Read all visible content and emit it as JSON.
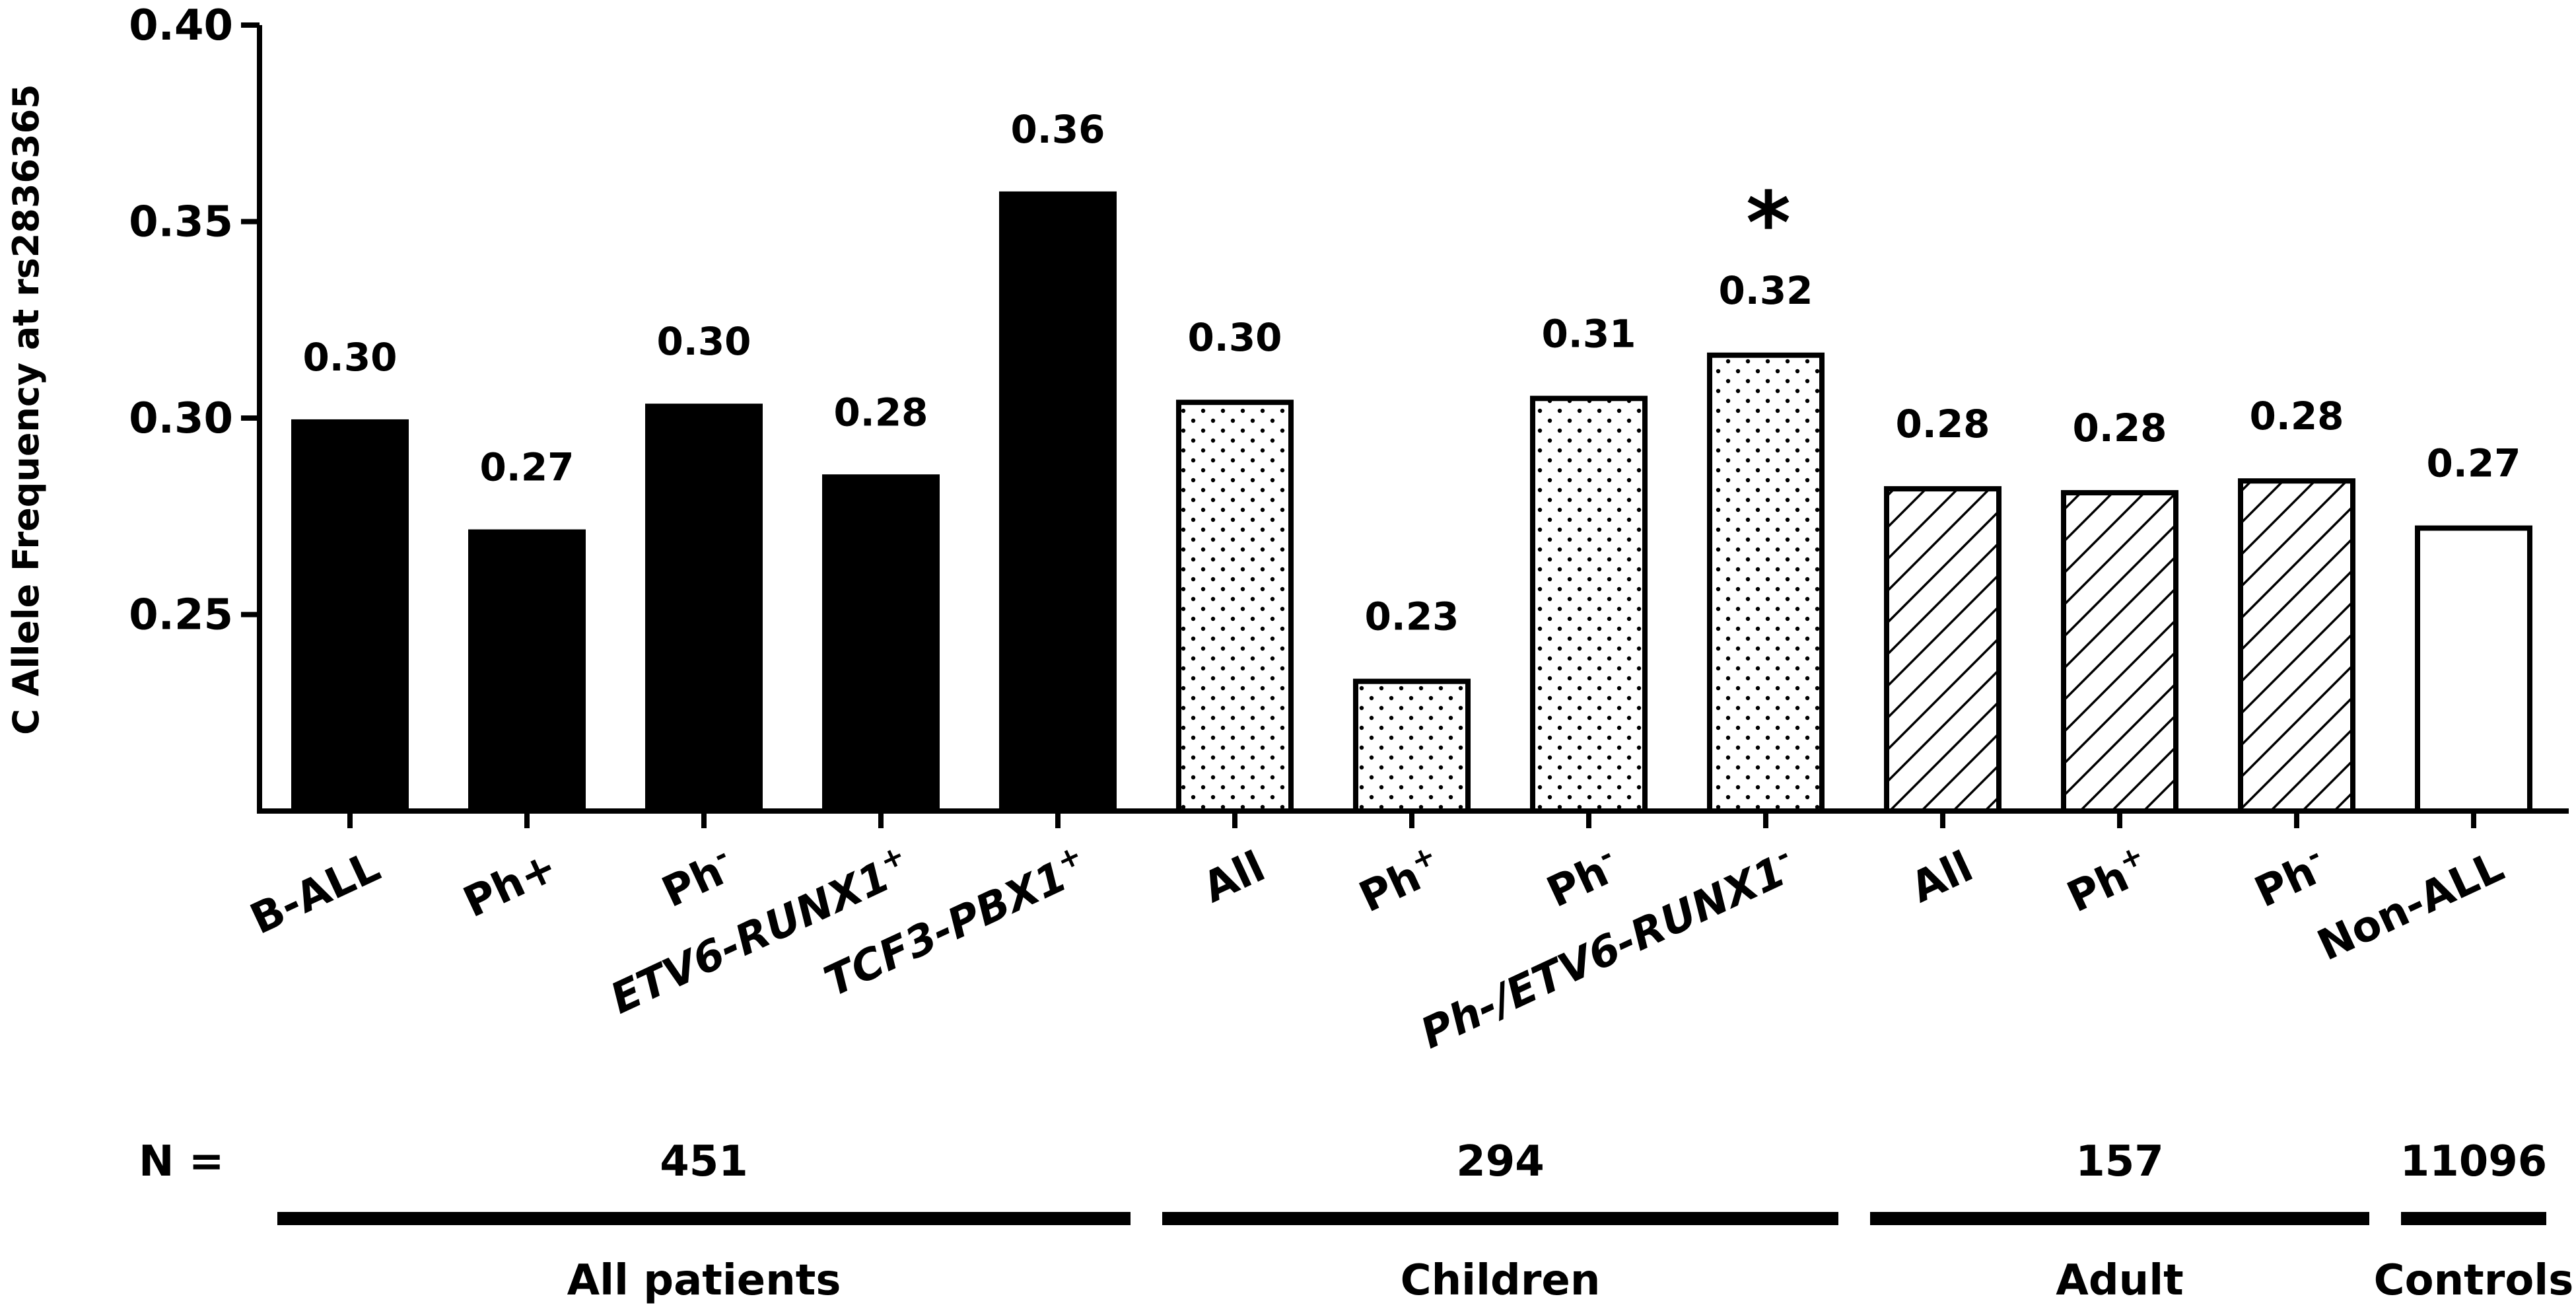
{
  "chart_data": {
    "type": "bar",
    "ylabel": "C Allele Frequency at rs2836365",
    "ylim": [
      0.2,
      0.4
    ],
    "yticks": [
      "0.40",
      "0.35",
      "0.30",
      "0.25"
    ],
    "ytick_values": [
      0.4,
      0.35,
      0.3,
      0.25
    ],
    "categories": [
      {
        "label": "B-ALL",
        "sup": "",
        "value": 0.299,
        "data_label": "0.30",
        "pattern": "solid"
      },
      {
        "label": "Ph+",
        "sup": "",
        "value": 0.271,
        "data_label": "0.27",
        "pattern": "solid"
      },
      {
        "label": "Ph",
        "sup": "-",
        "value": 0.303,
        "data_label": "0.30",
        "pattern": "solid"
      },
      {
        "label": "ETV6-RUNX1",
        "sup": "+",
        "value": 0.285,
        "data_label": "0.28",
        "pattern": "solid"
      },
      {
        "label": "TCF3-PBX1",
        "sup": "+",
        "value": 0.357,
        "data_label": "0.36",
        "pattern": "solid"
      },
      {
        "label": "All",
        "sup": "",
        "value": 0.304,
        "data_label": "0.30",
        "pattern": "dots"
      },
      {
        "label": "Ph",
        "sup": "+",
        "value": 0.233,
        "data_label": "0.23",
        "pattern": "dots"
      },
      {
        "label": "Ph",
        "sup": "-",
        "value": 0.305,
        "data_label": "0.31",
        "pattern": "dots"
      },
      {
        "label": "Ph-/ETV6-RUNX1",
        "sup": "-",
        "value": 0.316,
        "data_label": "0.32",
        "pattern": "dots",
        "annotation": "*"
      },
      {
        "label": "All",
        "sup": "",
        "value": 0.282,
        "data_label": "0.28",
        "pattern": "hatch"
      },
      {
        "label": "Ph",
        "sup": "+",
        "value": 0.281,
        "data_label": "0.28",
        "pattern": "hatch"
      },
      {
        "label": "Ph",
        "sup": "-",
        "value": 0.284,
        "data_label": "0.28",
        "pattern": "hatch"
      },
      {
        "label": "Non-ALL",
        "sup": "",
        "value": 0.272,
        "data_label": "0.27",
        "pattern": "open"
      }
    ],
    "n_prefix": "N =",
    "groups": [
      {
        "name": "All patients",
        "n": "451",
        "first": 0,
        "last": 4
      },
      {
        "name": "Children",
        "n": "294",
        "first": 5,
        "last": 8
      },
      {
        "name": "Adult",
        "n": "157",
        "first": 9,
        "last": 11
      },
      {
        "name": "Controls",
        "n": "11096",
        "first": 12,
        "last": 12
      }
    ],
    "colors": {
      "ink": "#000000",
      "bar_open": "#ffffff"
    }
  }
}
